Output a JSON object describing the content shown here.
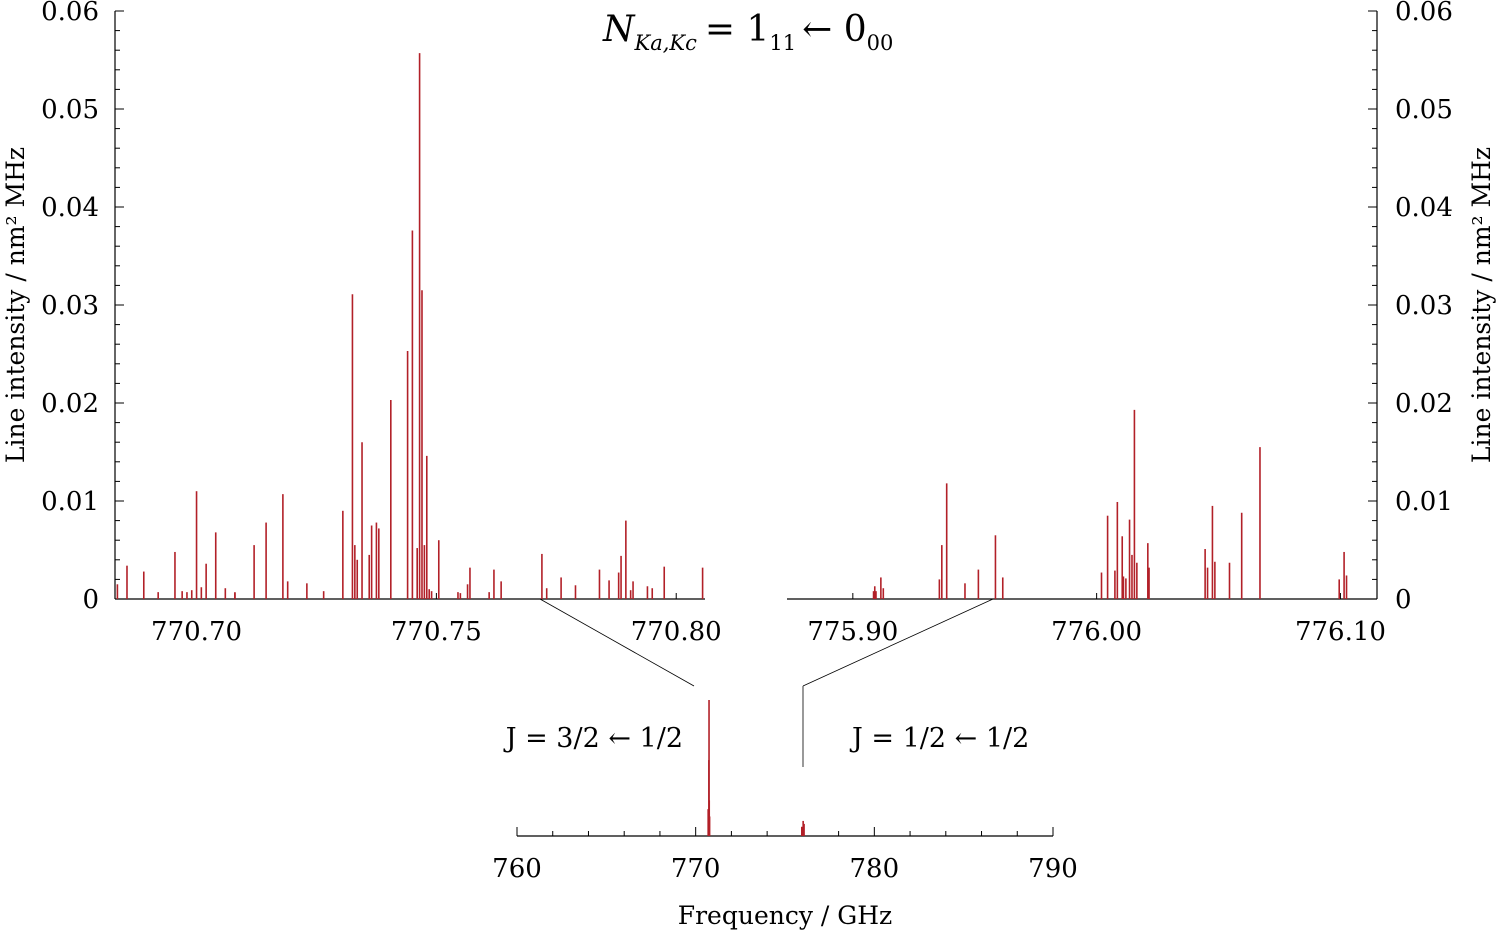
{
  "chart_data": [
    {
      "id": "left",
      "type": "bar",
      "subtype": "stick-spectrum",
      "title_main": "N",
      "title_sub": "Ka,Kc",
      "title_rest": "= 1",
      "title_sub2": "11",
      "title_rest2": "← 0",
      "title_sub3": "00",
      "xlim": [
        770.683,
        770.806
      ],
      "ylim": [
        0,
        0.06
      ],
      "ylabel": "Line intensity / nm² MHz",
      "yticks": [
        "0",
        "0.01",
        "0.02",
        "0.03",
        "0.04",
        "0.05",
        "0.06"
      ],
      "ytick_values": [
        0,
        0.01,
        0.02,
        0.03,
        0.04,
        0.05,
        0.06
      ],
      "xticks": [
        "770.70",
        "770.75",
        "770.80"
      ],
      "xtick_values": [
        770.7,
        770.75,
        770.8
      ],
      "color": "#b22028",
      "x": [
        770.6835,
        770.6855,
        770.689,
        770.692,
        770.6955,
        770.697,
        770.698,
        770.699,
        770.7,
        770.701,
        770.702,
        770.704,
        770.706,
        770.708,
        770.708,
        770.712,
        770.7145,
        770.718,
        770.719,
        770.723,
        770.7265,
        770.7305,
        770.7325,
        770.733,
        770.7335,
        770.7345,
        770.736,
        770.7365,
        770.7375,
        770.738,
        770.7405,
        770.744,
        770.745,
        770.746,
        770.7465,
        770.747,
        770.7475,
        770.748,
        770.7485,
        770.749,
        770.7505,
        770.7545,
        770.755,
        770.7565,
        770.757,
        770.761,
        770.762,
        770.7635,
        770.772,
        770.773,
        770.776,
        770.779,
        770.784,
        770.786,
        770.788,
        770.7885,
        770.7895,
        770.7905,
        770.791,
        770.794,
        770.795,
        770.7975,
        770.8055
      ],
      "values": [
        0.0015,
        0.0034,
        0.0028,
        0.0007,
        0.0048,
        0.0008,
        0.0007,
        0.0009,
        0.011,
        0.0012,
        0.0036,
        0.0068,
        0.0011,
        0.0007,
        0.0006,
        0.0055,
        0.0078,
        0.0107,
        0.0018,
        0.0016,
        0.0008,
        0.009,
        0.0311,
        0.0055,
        0.004,
        0.016,
        0.0045,
        0.0075,
        0.0078,
        0.0072,
        0.0203,
        0.0253,
        0.0376,
        0.0052,
        0.0557,
        0.0315,
        0.0055,
        0.0146,
        0.001,
        0.0008,
        0.006,
        0.0007,
        0.0006,
        0.0015,
        0.0032,
        0.0007,
        0.003,
        0.0018,
        0.0046,
        0.0011,
        0.0022,
        0.0014,
        0.003,
        0.0019,
        0.0027,
        0.0044,
        0.008,
        0.0009,
        0.0018,
        0.0013,
        0.0011,
        0.0033,
        0.0032
      ]
    },
    {
      "id": "right",
      "type": "bar",
      "subtype": "stick-spectrum",
      "xlim": [
        775.873,
        776.115
      ],
      "ylim": [
        0,
        0.06
      ],
      "ylabel": "Line intensity / nm² MHz",
      "yticks": [
        "0",
        "0.01",
        "0.02",
        "0.03",
        "0.04",
        "0.05",
        "0.06"
      ],
      "ytick_values": [
        0,
        0.01,
        0.02,
        0.03,
        0.04,
        0.05,
        0.06
      ],
      "xticks": [
        "775.90",
        "776.00",
        "776.10"
      ],
      "xtick_values": [
        775.9,
        776.0,
        776.1
      ],
      "color": "#b22028",
      "x": [
        775.9085,
        775.909,
        775.9095,
        775.9115,
        775.9125,
        775.9355,
        775.9365,
        775.9385,
        775.946,
        775.9515,
        775.9585,
        775.9615,
        776.002,
        776.0045,
        776.0075,
        776.0085,
        776.0105,
        776.011,
        776.012,
        776.0135,
        776.0145,
        776.0155,
        776.0165,
        776.021,
        776.0215,
        776.0445,
        776.0455,
        776.0475,
        776.0485,
        776.0545,
        776.0595,
        776.067,
        776.0995,
        776.1015,
        776.1025
      ],
      "values": [
        0.0008,
        0.0013,
        0.0008,
        0.0022,
        0.0011,
        0.002,
        0.0055,
        0.0118,
        0.0016,
        0.003,
        0.0065,
        0.0022,
        0.0027,
        0.0085,
        0.0029,
        0.0099,
        0.0064,
        0.0023,
        0.0021,
        0.0081,
        0.0045,
        0.0193,
        0.0037,
        0.0057,
        0.0032,
        0.0051,
        0.0032,
        0.0095,
        0.0038,
        0.0037,
        0.0088,
        0.0155,
        0.002,
        0.0048,
        0.0024
      ]
    },
    {
      "id": "overview",
      "type": "bar",
      "subtype": "stick-spectrum",
      "xlim": [
        760,
        790
      ],
      "xlabel": "Frequency / GHz",
      "xticks": [
        "760",
        "770",
        "780",
        "790"
      ],
      "xtick_values": [
        760,
        770,
        780,
        790
      ],
      "color": "#b22028",
      "x": [
        770.7,
        770.72,
        770.74,
        770.748,
        770.76,
        770.78,
        775.94,
        776.0,
        776.016,
        776.04,
        776.067
      ],
      "values": [
        0.011,
        0.0107,
        0.0311,
        0.0557,
        0.0146,
        0.008,
        0.0118,
        0.0099,
        0.0193,
        0.0095,
        0.0155
      ],
      "annotations": [
        {
          "label": "J = 3/2 ← 1/2",
          "target": 770.75
        },
        {
          "label": "J = 1/2 ← 1/2",
          "target": 776.0
        }
      ]
    }
  ]
}
